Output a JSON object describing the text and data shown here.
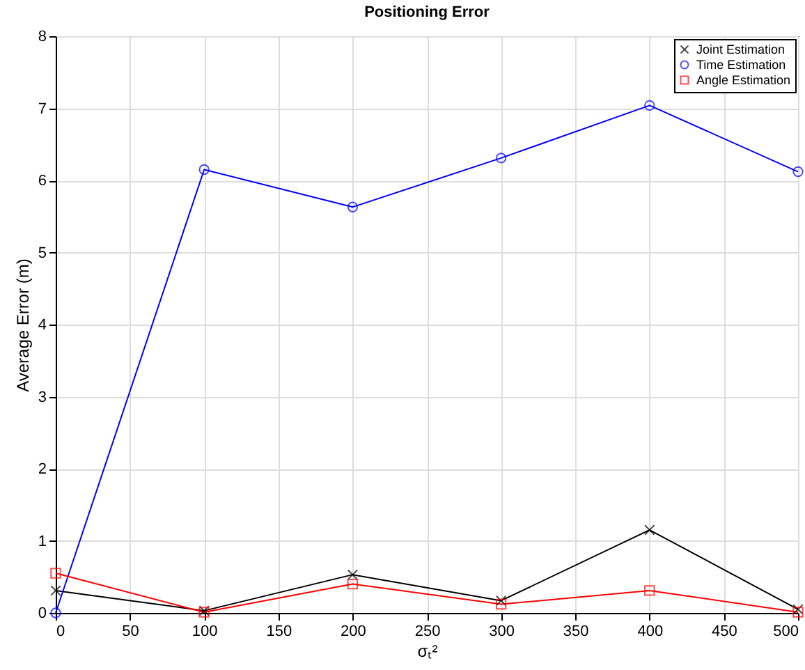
{
  "chart_data": {
    "type": "line",
    "title": "Positioning Error",
    "xlabel": "σₜ²",
    "ylabel": "Average Error (m)",
    "x": [
      0,
      100,
      200,
      300,
      400,
      500
    ],
    "series": [
      {
        "name": "Joint Estimation",
        "color": "#000000",
        "marker": "cross",
        "values": [
          0.31,
          0.03,
          0.53,
          0.17,
          1.15,
          0.05
        ]
      },
      {
        "name": "Time Estimation",
        "color": "#0000ff",
        "marker": "circle",
        "values": [
          0,
          6.15,
          5.63,
          6.31,
          7.04,
          6.12
        ]
      },
      {
        "name": "Angle Estimation",
        "color": "#ff0000",
        "marker": "square",
        "values": [
          0.55,
          0.01,
          0.4,
          0.12,
          0.31,
          0.01
        ]
      }
    ],
    "xlim": [
      0,
      500
    ],
    "xticks": [
      0,
      50,
      100,
      150,
      200,
      250,
      300,
      350,
      400,
      450,
      500
    ],
    "ylim": [
      0,
      8
    ],
    "yticks": [
      0,
      1,
      2,
      3,
      4,
      5,
      6,
      7,
      8
    ],
    "grid": true,
    "legend": "top right",
    "line_style": "solid"
  }
}
